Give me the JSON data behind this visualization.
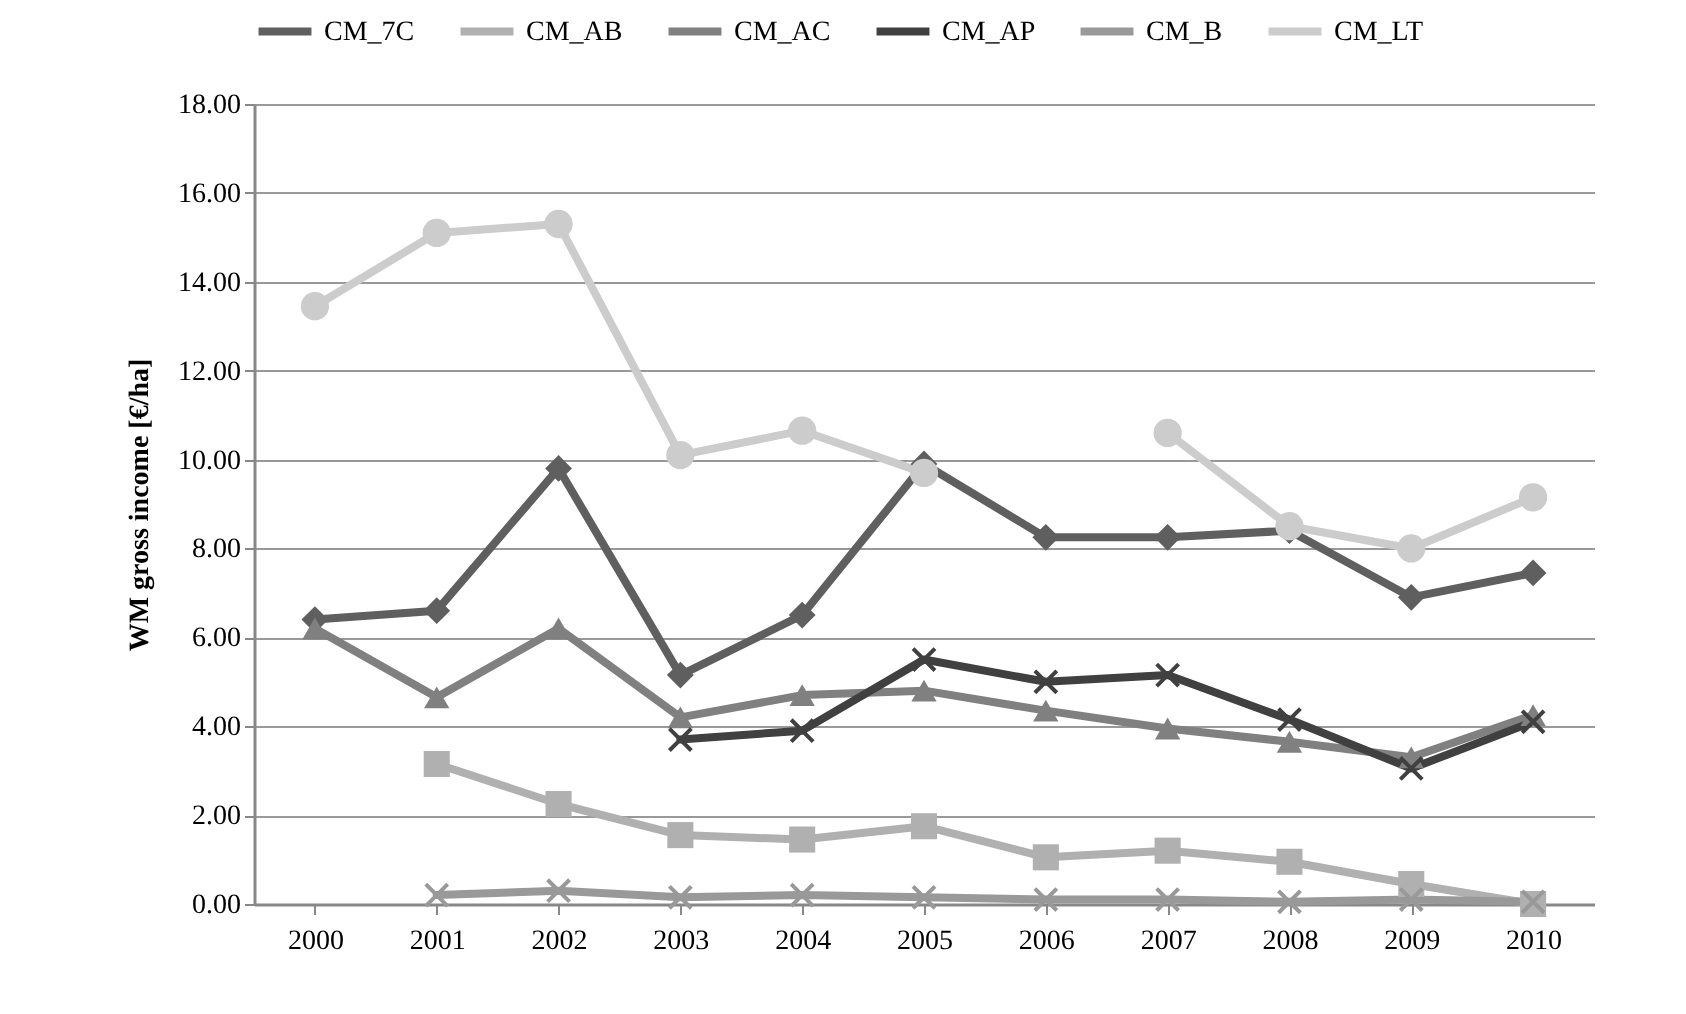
{
  "chart_data": {
    "type": "line",
    "ylabel": "WM gross income [€/ha]",
    "categories": [
      "2000",
      "2001",
      "2002",
      "2003",
      "2004",
      "2005",
      "2006",
      "2007",
      "2008",
      "2009",
      "2010"
    ],
    "series": [
      {
        "name": "CM_7C",
        "color": "#5f5f5f",
        "marker": "diamond",
        "values": [
          6.4,
          6.6,
          9.8,
          5.15,
          6.5,
          9.9,
          8.25,
          8.25,
          8.4,
          6.9,
          7.45
        ]
      },
      {
        "name": "CM_AB",
        "color": "#b0b0b0",
        "marker": "square",
        "values": [
          null,
          3.15,
          2.25,
          1.55,
          1.45,
          1.75,
          1.05,
          1.2,
          0.95,
          0.45,
          0.0
        ]
      },
      {
        "name": "CM_AC",
        "color": "#808080",
        "marker": "triangle",
        "values": [
          6.2,
          4.65,
          6.2,
          4.2,
          4.7,
          4.8,
          4.35,
          3.95,
          3.65,
          3.3,
          4.25
        ]
      },
      {
        "name": "CM_AP",
        "color": "#404040",
        "marker": "cross",
        "values": [
          null,
          null,
          null,
          3.7,
          3.9,
          5.5,
          5.0,
          5.15,
          4.15,
          3.05,
          4.1
        ]
      },
      {
        "name": "CM_B",
        "color": "#999999",
        "marker": "cross",
        "values": [
          null,
          0.2,
          0.3,
          0.15,
          0.2,
          0.15,
          0.1,
          0.1,
          0.05,
          0.1,
          0.05
        ]
      },
      {
        "name": "CM_LT",
        "color": "#cccccc",
        "marker": "circle",
        "values": [
          13.45,
          15.1,
          15.3,
          10.1,
          10.65,
          9.7,
          null,
          10.6,
          8.5,
          8.0,
          9.15
        ]
      }
    ],
    "ylim": [
      0,
      18
    ],
    "yticks": [
      {
        "value": 0,
        "label": "0.00"
      },
      {
        "value": 2,
        "label": "2.00"
      },
      {
        "value": 4,
        "label": "4.00"
      },
      {
        "value": 6,
        "label": "6.00"
      },
      {
        "value": 8,
        "label": "8.00"
      },
      {
        "value": 10,
        "label": "10.00"
      },
      {
        "value": 12,
        "label": "12.00"
      },
      {
        "value": 14,
        "label": "14.00"
      },
      {
        "value": 16,
        "label": "16.00"
      },
      {
        "value": 18,
        "label": "18.00"
      }
    ],
    "grid": "y",
    "legend": "top"
  }
}
